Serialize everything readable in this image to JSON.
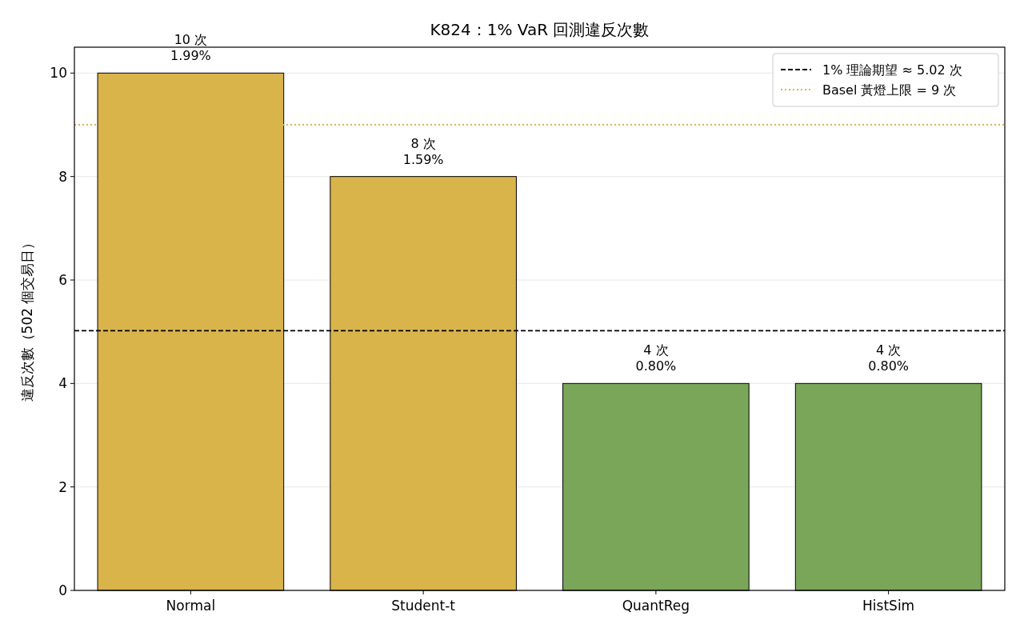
{
  "chart_data": {
    "type": "bar",
    "title": "K824：1% VaR 回測違反次數",
    "ylabel": "違反次數（502 個交易日）",
    "categories": [
      "Normal",
      "Student-t",
      "QuantReg",
      "HistSim"
    ],
    "values": [
      10,
      8,
      4,
      4
    ],
    "colors": [
      "#d9b44a",
      "#d9b44a",
      "#7aa65a",
      "#7aa65a"
    ],
    "value_labels": [
      "10 次\n1.99%",
      "8 次\n1.59%",
      "4 次\n0.80%",
      "4 次\n0.80%"
    ],
    "ylim": [
      0,
      10.5
    ],
    "yticks": [
      0,
      2,
      4,
      6,
      8,
      10
    ],
    "grid": "y",
    "legend": "top right",
    "ref_lines": [
      {
        "axis": "y",
        "value": 5.02,
        "label": "1% 理論期望 ≈ 5.02 次",
        "color": "#000000",
        "line_style": "dashed"
      },
      {
        "axis": "y",
        "value": 9,
        "label": "Basel 黃燈上限 = 9 次",
        "color": "#d9b44a",
        "line_style": "dotted"
      }
    ]
  }
}
